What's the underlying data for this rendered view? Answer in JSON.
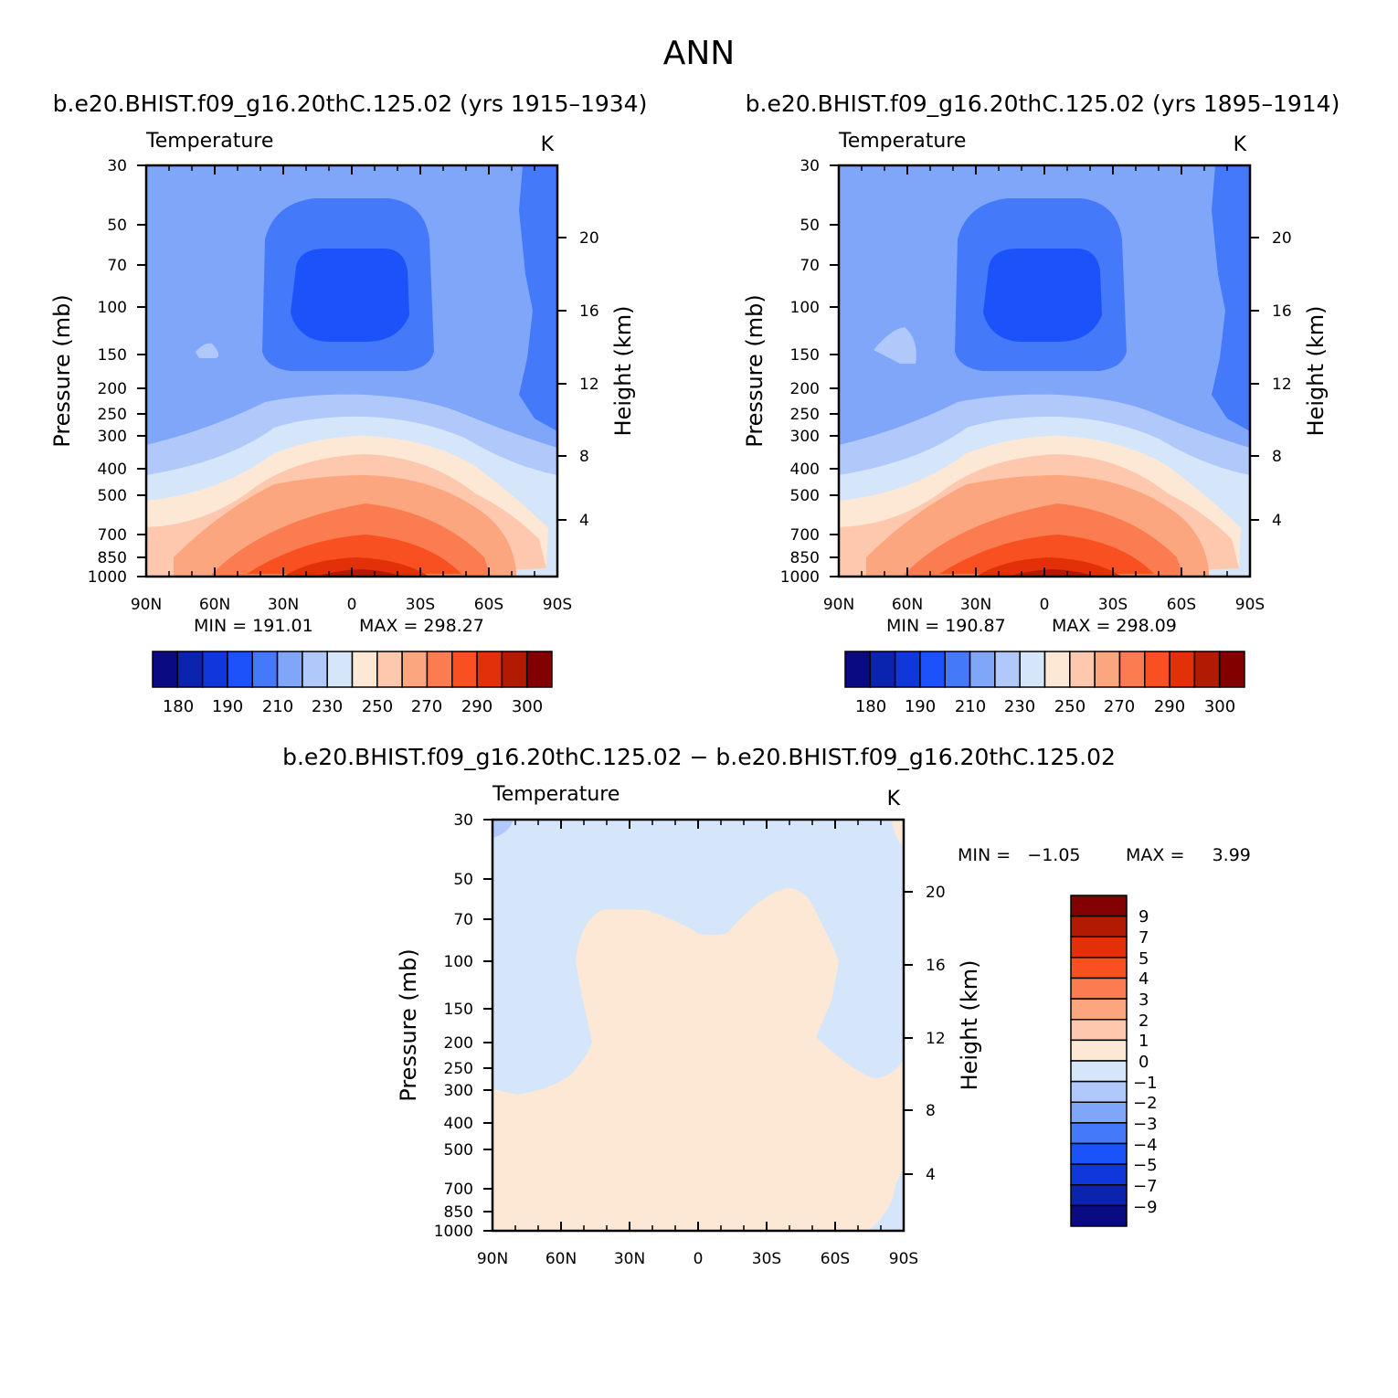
{
  "page": {
    "title": "ANN",
    "diff_title": "b.e20.BHIST.f09_g16.20thC.125.02 − b.e20.BHIST.f09_g16.20thC.125.02"
  },
  "colors": {
    "abs_palette": [
      "#0a0a82",
      "#0a24b0",
      "#0f37dc",
      "#1c52fa",
      "#4479fa",
      "#80a6fa",
      "#b0c8fa",
      "#d6e6fa",
      "#fde8d6",
      "#fdc8ae",
      "#fca680",
      "#fb7c50",
      "#f85020",
      "#e23008",
      "#b31a04",
      "#820000"
    ],
    "diff_palette": [
      "#0a0a82",
      "#0a24b0",
      "#0f37dc",
      "#1c52fa",
      "#4479fa",
      "#80a6fa",
      "#b0c8fa",
      "#d6e6fa",
      "#fde8d6",
      "#fdc8ae",
      "#fca680",
      "#fb7c50",
      "#f85020",
      "#e23008",
      "#b31a04",
      "#820000"
    ]
  },
  "chart_data": [
    {
      "type": "heatmap",
      "subtitle": "b.e20.BHIST.f09_g16.20thC.125.02 (yrs 1915–1934)",
      "variable": "Temperature",
      "units": "K",
      "ylabel": "Pressure (mb)",
      "y2label": "Height (km)",
      "x_ticks": [
        "90N",
        "60N",
        "30N",
        "0",
        "30S",
        "60S",
        "90S"
      ],
      "y_ticks": [
        "30",
        "50",
        "70",
        "100",
        "150",
        "200",
        "250",
        "300",
        "400",
        "500",
        "700",
        "850",
        "1000"
      ],
      "y2_ticks": [
        "20",
        "16",
        "12",
        "8",
        "4"
      ],
      "ylim": [
        1000,
        30
      ],
      "min_text": "MIN = 191.01",
      "max_text": "MAX = 298.27",
      "min": 191.01,
      "max": 298.27,
      "colorbar_labels": [
        "180",
        "190",
        "210",
        "230",
        "250",
        "270",
        "290",
        "300"
      ],
      "contour_levels": [
        180,
        185,
        190,
        200,
        210,
        220,
        230,
        240,
        250,
        260,
        270,
        280,
        290,
        295,
        300
      ]
    },
    {
      "type": "heatmap",
      "subtitle": "b.e20.BHIST.f09_g16.20thC.125.02 (yrs 1895–1914)",
      "variable": "Temperature",
      "units": "K",
      "ylabel": "Pressure (mb)",
      "y2label": "Height (km)",
      "x_ticks": [
        "90N",
        "60N",
        "30N",
        "0",
        "30S",
        "60S",
        "90S"
      ],
      "y_ticks": [
        "30",
        "50",
        "70",
        "100",
        "150",
        "200",
        "250",
        "300",
        "400",
        "500",
        "700",
        "850",
        "1000"
      ],
      "y2_ticks": [
        "20",
        "16",
        "12",
        "8",
        "4"
      ],
      "ylim": [
        1000,
        30
      ],
      "min_text": "MIN = 190.87",
      "max_text": "MAX = 298.09",
      "min": 190.87,
      "max": 298.09,
      "colorbar_labels": [
        "180",
        "190",
        "210",
        "230",
        "250",
        "270",
        "290",
        "300"
      ],
      "contour_levels": [
        180,
        185,
        190,
        200,
        210,
        220,
        230,
        240,
        250,
        260,
        270,
        280,
        290,
        295,
        300
      ]
    },
    {
      "type": "heatmap",
      "variable": "Temperature",
      "units": "K",
      "ylabel": "Pressure (mb)",
      "y2label": "Height (km)",
      "x_ticks": [
        "90N",
        "60N",
        "30N",
        "0",
        "30S",
        "60S",
        "90S"
      ],
      "y_ticks": [
        "30",
        "50",
        "70",
        "100",
        "150",
        "200",
        "250",
        "300",
        "400",
        "500",
        "700",
        "850",
        "1000"
      ],
      "y2_ticks": [
        "20",
        "16",
        "12",
        "8",
        "4"
      ],
      "ylim": [
        1000,
        30
      ],
      "min_text": "MIN =   −1.05",
      "max_text": "MAX =     3.99",
      "min": -1.05,
      "max": 3.99,
      "colorbar_labels": [
        "9",
        "7",
        "5",
        "4",
        "3",
        "2",
        "1",
        "0",
        "−1",
        "−2",
        "−3",
        "−4",
        "−5",
        "−7",
        "−9"
      ],
      "contour_levels": [
        -9,
        -7,
        -5,
        -4,
        -3,
        -2,
        -1,
        0,
        1,
        2,
        3,
        4,
        5,
        7,
        9
      ]
    }
  ]
}
